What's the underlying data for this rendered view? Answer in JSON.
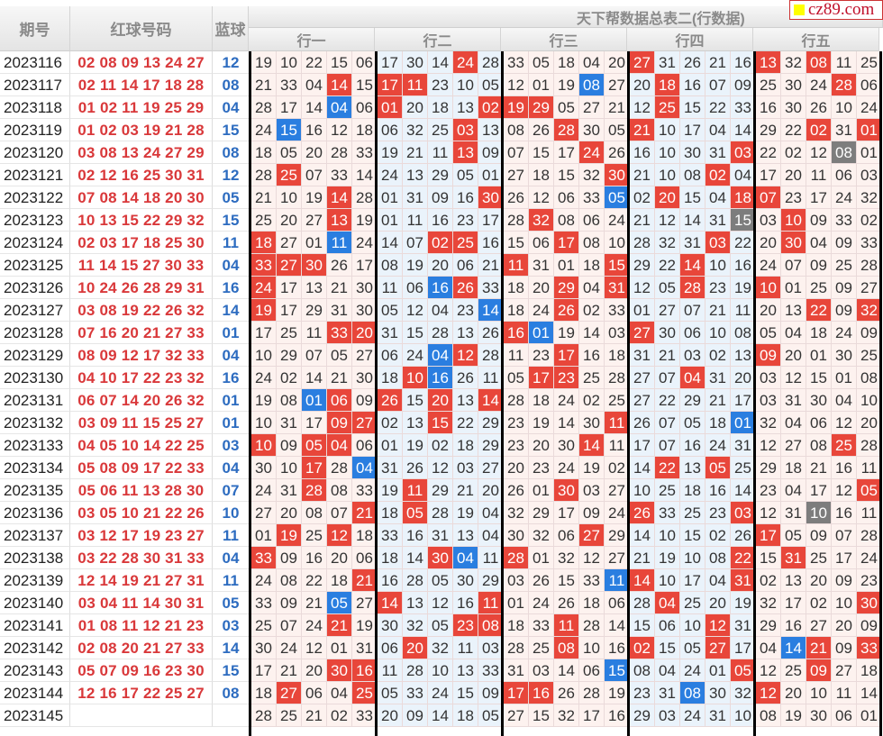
{
  "title": "天下帮数据总表二(行数据)",
  "headers": {
    "issue": "期号",
    "red": "红球号码",
    "blue": "蓝球"
  },
  "groups": [
    "行一",
    "行二",
    "行三",
    "行四",
    "行五"
  ],
  "watermark": "cz89.com",
  "colors": {
    "r": "#e8463a",
    "b": "#2a7ee0",
    "g": "#7d7d7d",
    "red_text": "#d9383a",
    "blue_text": "#2d6cc0"
  },
  "legend_note_markers": {
    "r": "red-highlight",
    "b": "blue-highlight",
    "g": "gray-highlight"
  },
  "rows": [
    {
      "issue": "2023116",
      "red": "02 08 09 13 24 27",
      "blue": "12",
      "cells": "19 10 22 15 06 17 30 14 24r 28 33 05 18 04 20 27r 31 26 21 16 13r 32 08r 11 25"
    },
    {
      "issue": "2023117",
      "red": "02 11 14 17 18 28",
      "blue": "08",
      "cells": "21 33 04 14r 15 17r 11r 23 10 05 12 01 19 08b 27 20 18r 16 07 09 25 30 24 28r 06"
    },
    {
      "issue": "2023118",
      "red": "01 02 11 19 25 29",
      "blue": "04",
      "cells": "28 17 14 04b 06 01r 20 18 13 02r 19r 29r 05 27 21 12 25r 15 22 33 16 30 26 10 24"
    },
    {
      "issue": "2023119",
      "red": "01 02 03 19 21 28",
      "blue": "15",
      "cells": "24 15b 16 12 18 06 32 25 03r 13 08 26 28r 30 05 21r 10 17 04 14 29 22 02r 31 01r"
    },
    {
      "issue": "2023120",
      "red": "03 08 13 24 27 29",
      "blue": "08",
      "cells": "18 05 20 28 33 19 21 11 13r 09 07 15 17 24r 26 16 10 30 31 03r 22 02 12 08g 01"
    },
    {
      "issue": "2023121",
      "red": "02 12 16 25 30 31",
      "blue": "12",
      "cells": "28 25r 07 33 14 24 13 29 05 01 27 18 15 32 30r 21 10 08 02r 04 17 20 11 06 03"
    },
    {
      "issue": "2023122",
      "red": "07 08 14 18 20 30",
      "blue": "05",
      "cells": "21 10 19 14r 28 01 31 09 16 30r 26 12 06 33 05b 02 20r 15 04 18r 07r 23 17 24 32"
    },
    {
      "issue": "2023123",
      "red": "10 13 15 22 29 32",
      "blue": "15",
      "cells": "25 20 27 13r 19 01 11 16 23 17 28 32r 08 06 24 21 12 14 31 15g 03 10r 09 33 02"
    },
    {
      "issue": "2023124",
      "red": "02 03 17 18 25 30",
      "blue": "11",
      "cells": "18r 27 01 11b 24 14 07 02r 25r 16 15 06 17r 08 10 28 32 31 03r 22 20 30r 04 09 33"
    },
    {
      "issue": "2023125",
      "red": "11 14 15 27 30 33",
      "blue": "04",
      "cells": "33r 27r 30r 26 17 08 19 20 06 21 11r 31 01 18 15r 29 22 14r 10 16 24 07 09 25 28"
    },
    {
      "issue": "2023126",
      "red": "10 24 26 28 29 31",
      "blue": "16",
      "cells": "24r 17 13 21 30 11 06 16b 26r 33 18 20 29r 04 31r 12 05 28r 23 19 10r 01 25 09 27"
    },
    {
      "issue": "2023127",
      "red": "03 08 19 22 26 32",
      "blue": "14",
      "cells": "19r 17 29 31 30 05 12 04 23 14b 18 24 26r 02 33 01 27 07 21 11 20 13 22r 09 32r"
    },
    {
      "issue": "2023128",
      "red": "07 16 20 21 27 33",
      "blue": "01",
      "cells": "17 25 11 33r 20r 31 15 28 13 26 16r 01b 19 14 03 27r 30 06 10 08 05 04 18 24 09"
    },
    {
      "issue": "2023129",
      "red": "08 09 12 17 32 33",
      "blue": "04",
      "cells": "10 29 07 05 27 06 24 04b 12r 28 11 23 17r 16 18 31 21 03 02 13 09r 20 01 30 25"
    },
    {
      "issue": "2023130",
      "red": "04 10 17 22 23 32",
      "blue": "16",
      "cells": "24 02 14 21 30 18 10r 16b 26 11 05 17r 23r 25 28 27 07 04r 31 20 03 12 15 01 08"
    },
    {
      "issue": "2023131",
      "red": "06 07 14 20 26 32",
      "blue": "01",
      "cells": "19 08 01b 06r 09 26r 15 20r 13 14r 28 18 24 02 25 27 22 29 21 17 03 31 30 04 10"
    },
    {
      "issue": "2023132",
      "red": "03 09 11 15 25 27",
      "blue": "01",
      "cells": "10 31 17 09r 27r 02 13 15r 22 29 23 19 14 30 11r 26 07 05 18 01b 32 04 06 12 20"
    },
    {
      "issue": "2023133",
      "red": "04 05 10 14 22 25",
      "blue": "03",
      "cells": "10r 09 05r 04r 06 01 19 02 18 29 23 20 30 14r 11 17 07 16 24 31 12 27 08 25r 28"
    },
    {
      "issue": "2023134",
      "red": "05 08 09 17 22 33",
      "blue": "04",
      "cells": "30 10 17r 28 04b 31 26 12 03 27 20 23 24 19 02 14 22r 13 05r 25 29 18 21 16 11"
    },
    {
      "issue": "2023135",
      "red": "05 06 11 13 28 30",
      "blue": "07",
      "cells": "24 31 28r 08 33 19 11r 29 21 20 26 01 30r 03 27 10 25 18 16 14 23 04 17 12 05r"
    },
    {
      "issue": "2023136",
      "red": "03 05 10 21 22 26",
      "blue": "10",
      "cells": "27 20 08 07 21r 18 05r 28 19 04 32 29 17 09 24 26r 33 25 23 03r 12 31 10g 16 11"
    },
    {
      "issue": "2023137",
      "red": "03 12 17 19 23 27",
      "blue": "11",
      "cells": "01 19r 25 12r 18 33 16 31 13 04 30 32 06 27r 29 14 10 15 02 26 17r 05 09 07 28"
    },
    {
      "issue": "2023138",
      "red": "03 22 28 30 31 33",
      "blue": "04",
      "cells": "33r 09 16 20 06 18 14 30r 04b 11 28r 01 32 12 27 21 19 10 08 22r 15 31r 25 17 24"
    },
    {
      "issue": "2023139",
      "red": "12 14 19 21 27 31",
      "blue": "11",
      "cells": "24 08 22 18 21r 16 28 05 30 29 03 26 15 33 11b 14r 10 17 04 31r 02 13 20 09 23"
    },
    {
      "issue": "2023140",
      "red": "03 04 11 14 30 31",
      "blue": "05",
      "cells": "33 09 21 05b 27 14r 13 12 16 11r 01 24 26 18 06 28 04r 25 20 19 32 17 02 10 30r"
    },
    {
      "issue": "2023141",
      "red": "01 08 11 12 21 23",
      "blue": "03",
      "cells": "25 07 24 21r 19 30 32 05 23r 08r 18 33 11r 28 14 15 06 10 12r 31 29 16 27 20 09"
    },
    {
      "issue": "2023142",
      "red": "02 08 20 21 27 33",
      "blue": "14",
      "cells": "30 24 12 01 31 06 20r 32 11 03 28 25 08r 10 16 02r 15 05 27r 17 04 14b 21r 09 33r"
    },
    {
      "issue": "2023143",
      "red": "05 07 09 16 23 30",
      "blue": "15",
      "cells": "17 21 20 30r 16r 11 28 10 13 33 31 03 14 06 15b 08 04 24 01 05r 12 25 09r 27 18"
    },
    {
      "issue": "2023144",
      "red": "12 16 17 22 25 27",
      "blue": "08",
      "cells": "18 27r 06 04 25r 05 33 24 15 09 17r 16r 26 28 19 23 31 08b 30 32 12r 20 10 11 14"
    },
    {
      "issue": "2023145",
      "red": "",
      "blue": "",
      "cells": "28 25 21 02 33 20 09 14 18 05 27 15 32 17 16 29 03 24 31 10 08 19 30 06 01"
    }
  ]
}
